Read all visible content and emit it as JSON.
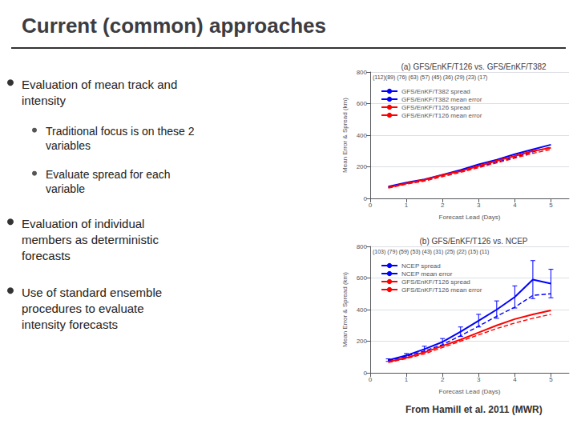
{
  "title": "Current (common) approaches",
  "annotations": [
    {
      "text": "Evaluation of mean track and\nintensity",
      "sub": [
        "Traditional focus is on these 2\nvariables",
        "Evaluate spread for each\nvariable"
      ]
    },
    {
      "text": "Evaluation of individual\nmembers as deterministic\nforecasts"
    },
    {
      "text": "Use of standard ensemble\nprocedures to evaluate\nintensity forecasts"
    }
  ],
  "caption": "From Hamill et al. 2011 (MWR)",
  "chart_data": [
    {
      "type": "line",
      "title": "(a) GFS/EnKF/T126 vs. GFS/EnKF/T382",
      "xlabel": "Forecast Lead (Days)",
      "ylabel": "Mean Error & Spread (km)",
      "x": [
        0.5,
        1,
        1.5,
        2,
        2.5,
        3,
        3.5,
        4,
        4.5,
        5
      ],
      "xlim": [
        0,
        5.5
      ],
      "xticks": [
        0,
        1,
        2,
        3,
        4,
        5
      ],
      "ylim": [
        0,
        800
      ],
      "yticks": [
        0,
        200,
        400,
        600,
        800
      ],
      "grid": true,
      "legend": "upper left",
      "annotations": [
        "(112)(89) (76) (63) (57) (45) (36) (29) (23) (17)"
      ],
      "series": [
        {
          "name": "GFS/EnKF/T382 spread",
          "color": "blue",
          "line_style": "dashed",
          "values": [
            70,
            95,
            115,
            145,
            175,
            200,
            230,
            260,
            295,
            325
          ]
        },
        {
          "name": "GFS/EnKF/T382 mean error",
          "color": "blue",
          "line_style": "solid",
          "values": [
            75,
            100,
            120,
            150,
            180,
            215,
            245,
            280,
            310,
            340
          ]
        },
        {
          "name": "GFS/EnKF/T126 spread",
          "color": "red",
          "line_style": "dashed",
          "values": [
            65,
            90,
            110,
            138,
            165,
            195,
            225,
            255,
            285,
            310
          ]
        },
        {
          "name": "GFS/EnKF/T126 mean error",
          "color": "red",
          "line_style": "solid",
          "values": [
            70,
            95,
            118,
            148,
            172,
            205,
            238,
            268,
            300,
            320
          ]
        }
      ]
    },
    {
      "type": "line",
      "title": "(b) GFS/EnKF/T126 vs. NCEP",
      "xlabel": "Forecast Lead (Days)",
      "ylabel": "Mean Error & Spread (km)",
      "x": [
        0.5,
        1,
        1.5,
        2,
        2.5,
        3,
        3.5,
        4,
        4.5,
        5
      ],
      "xlim": [
        0,
        5.5
      ],
      "xticks": [
        0,
        1,
        2,
        3,
        4,
        5
      ],
      "ylim": [
        0,
        800
      ],
      "yticks": [
        0,
        200,
        400,
        600,
        800
      ],
      "grid": true,
      "legend": "upper left",
      "annotations": [
        "(103) (79) (59) (53) (43) (31) (25) (22) (15) (11)"
      ],
      "series": [
        {
          "name": "NCEP spread",
          "color": "blue",
          "line_style": "dashed",
          "values": [
            75,
            105,
            138,
            178,
            235,
            295,
            358,
            415,
            490,
            500
          ]
        },
        {
          "name": "NCEP mean error",
          "color": "blue",
          "line_style": "solid",
          "values": [
            80,
            110,
            150,
            195,
            260,
            330,
            400,
            480,
            590,
            565
          ],
          "yerr": [
            8,
            12,
            18,
            22,
            30,
            40,
            55,
            70,
            120,
            90
          ]
        },
        {
          "name": "GFS/EnKF/T126 spread",
          "color": "red",
          "line_style": "dashed",
          "values": [
            65,
            90,
            120,
            160,
            200,
            240,
            280,
            315,
            345,
            370
          ]
        },
        {
          "name": "GFS/EnKF/T126 mean error",
          "color": "red",
          "line_style": "solid",
          "values": [
            70,
            95,
            130,
            170,
            210,
            255,
            300,
            340,
            370,
            395
          ]
        }
      ]
    }
  ]
}
